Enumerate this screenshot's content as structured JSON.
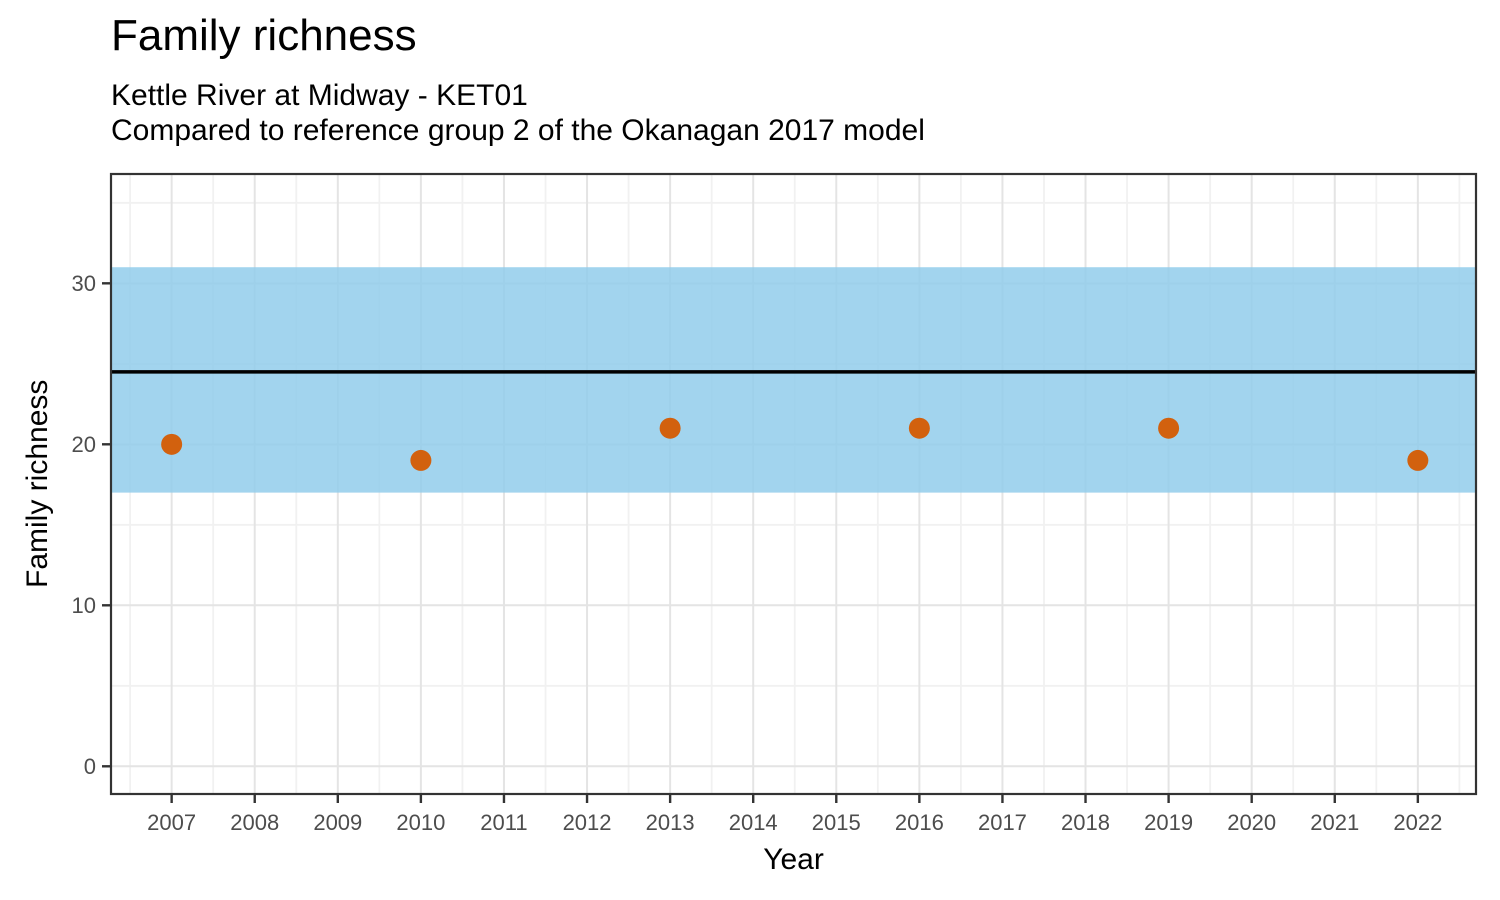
{
  "header": {
    "title": "Family richness",
    "subtitle_line1": "Kettle River at Midway - KET01",
    "subtitle_line2": "Compared to reference group 2 of the Okanagan 2017 model"
  },
  "chart_data": {
    "type": "scatter",
    "title": "Family richness",
    "subtitle": "Kettle River at Midway - KET01 — Compared to reference group 2 of the Okanagan 2017 model",
    "xlabel": "Year",
    "ylabel": "Family richness",
    "xlim": [
      2006.27,
      2022.7
    ],
    "ylim": [
      -1.72,
      36.79
    ],
    "x_ticks": [
      2007,
      2008,
      2009,
      2010,
      2011,
      2012,
      2013,
      2014,
      2015,
      2016,
      2017,
      2018,
      2019,
      2020,
      2021,
      2022
    ],
    "y_ticks": [
      0,
      10,
      20,
      30
    ],
    "y_minor_ticks": [
      5,
      15,
      25,
      35
    ],
    "grid": "major and minor, light gray",
    "legend": "none",
    "series": [
      {
        "name": "Family richness",
        "points": [
          {
            "x": 2007,
            "y": 20
          },
          {
            "x": 2010,
            "y": 19
          },
          {
            "x": 2013,
            "y": 21
          },
          {
            "x": 2016,
            "y": 21
          },
          {
            "x": 2019,
            "y": 21
          },
          {
            "x": 2022,
            "y": 19
          }
        ]
      }
    ],
    "reference_band": {
      "lower": 17,
      "upper": 31,
      "color": "#92CDEB",
      "opacity": 0.85
    },
    "reference_line": {
      "value": 24.5,
      "color": "#000000",
      "width": 3.5
    },
    "colors": {
      "point": "#D2610E",
      "band": "#92CDEB",
      "grid_major": "#E4E4E4",
      "grid_minor": "#F1F1F1",
      "axis_text": "#4D4D4D",
      "panel_border": "#333333",
      "tick_mark": "#333333"
    },
    "point_radius": 10.5
  }
}
